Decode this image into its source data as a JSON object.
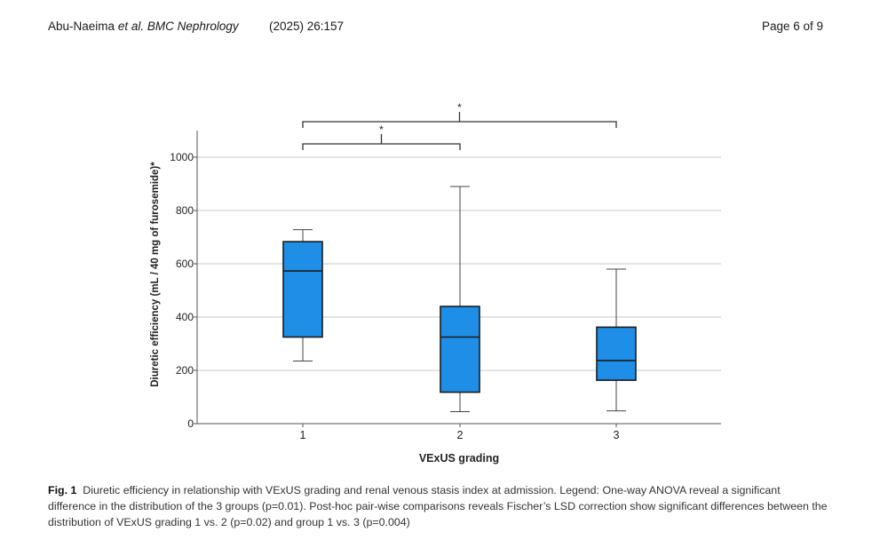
{
  "header": {
    "journal_author": "Abu-Naeima",
    "journal_etal": "et al.",
    "journal_name": "BMC Nephrology",
    "year_volume": "(2025) 26:157",
    "page": "Page 6 of 9"
  },
  "chart_data": {
    "type": "box",
    "xlabel": "VExUS grading",
    "ylabel": "Diuretic efficiency (mL / 40 mg of furosemide)*",
    "ylim": [
      0,
      1100
    ],
    "yticks": [
      0,
      200,
      400,
      600,
      800,
      1000
    ],
    "grid": "horizontal",
    "box_color": "#1e8ee6",
    "categories": [
      "1",
      "2",
      "3"
    ],
    "boxes": [
      {
        "group": "1",
        "min": 235,
        "q1": 325,
        "median": 573,
        "q3": 683,
        "max": 728
      },
      {
        "group": "2",
        "min": 45,
        "q1": 118,
        "median": 325,
        "q3": 440,
        "max": 890
      },
      {
        "group": "3",
        "min": 48,
        "q1": 163,
        "median": 237,
        "q3": 362,
        "max": 580
      }
    ],
    "significance": [
      {
        "from": "1",
        "to": "2",
        "label": "*"
      },
      {
        "from": "1",
        "to": "3",
        "label": "*"
      }
    ]
  },
  "caption": {
    "label": "Fig. 1",
    "text": "Diuretic efficiency in relationship with VExUS grading and renal venous stasis index at admission. Legend: One-way ANOVA reveal a significant difference in the distribution of the 3 groups (p=0.01). Post-hoc pair-wise comparisons reveals Fischer’s LSD correction show significant differences between the distribution of VExUS grading 1 vs. 2 (p=0.02) and group 1 vs. 3 (p=0.004)"
  }
}
